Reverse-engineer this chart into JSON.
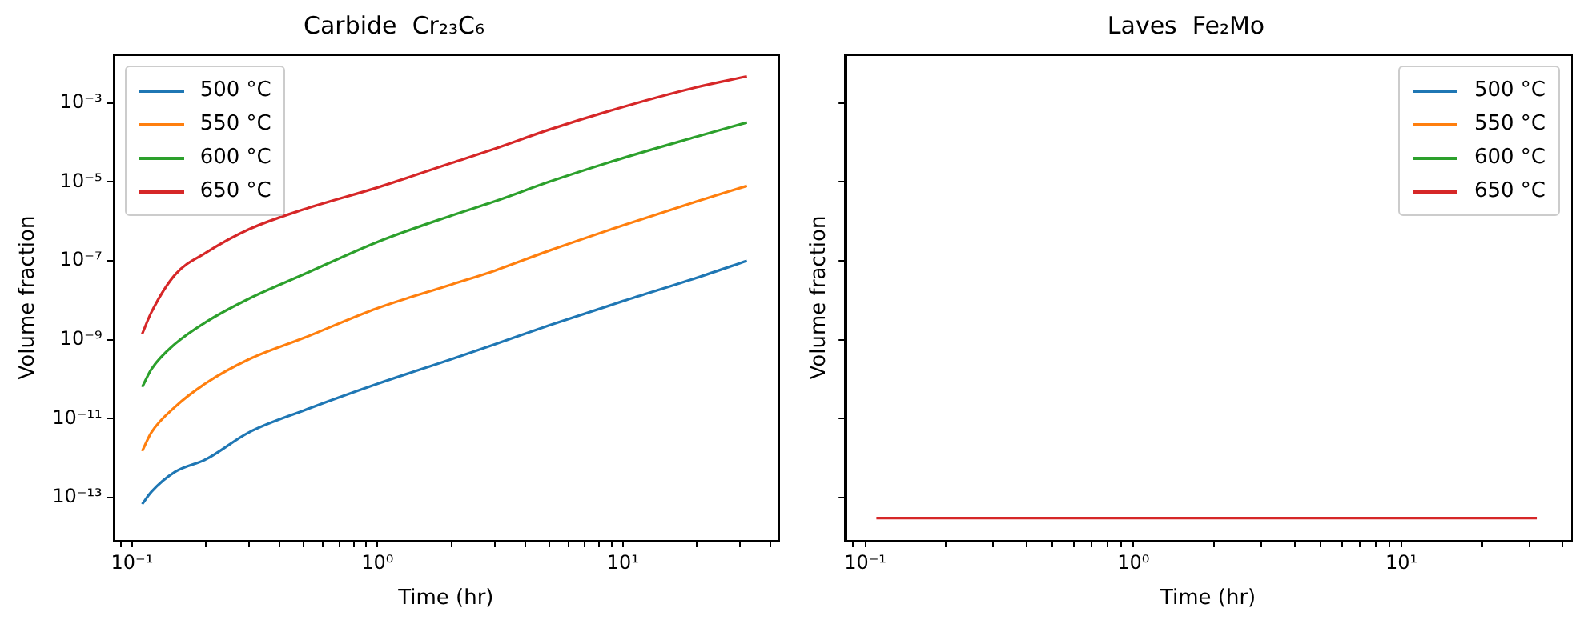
{
  "chart_data": [
    {
      "type": "line",
      "title": "Carbide  Cr₂₃C₆",
      "xlabel": "Time (hr)",
      "ylabel": "Volume fraction",
      "log": "xy",
      "legend": "top left",
      "x": [
        0.11,
        0.12,
        0.15,
        0.2,
        0.3,
        0.5,
        1,
        2,
        3,
        5,
        10,
        20,
        32
      ],
      "xlim": [
        0.084,
        43
      ],
      "ylim": [
        8e-15,
        0.017
      ],
      "xticks": [
        {
          "value": 0.1,
          "label": "10⁻¹"
        },
        {
          "value": 1,
          "label": "10⁰"
        },
        {
          "value": 10,
          "label": "10¹"
        },
        {
          "value": 0.09,
          "label": null
        },
        {
          "value": 0.2,
          "label": null
        },
        {
          "value": 0.3,
          "label": null
        },
        {
          "value": 0.4,
          "label": null
        },
        {
          "value": 0.5,
          "label": null
        },
        {
          "value": 0.6,
          "label": null
        },
        {
          "value": 0.7,
          "label": null
        },
        {
          "value": 0.8,
          "label": null
        },
        {
          "value": 0.9,
          "label": null
        },
        {
          "value": 2,
          "label": null
        },
        {
          "value": 3,
          "label": null
        },
        {
          "value": 4,
          "label": null
        },
        {
          "value": 5,
          "label": null
        },
        {
          "value": 6,
          "label": null
        },
        {
          "value": 7,
          "label": null
        },
        {
          "value": 8,
          "label": null
        },
        {
          "value": 9,
          "label": null
        },
        {
          "value": 20,
          "label": null
        },
        {
          "value": 30,
          "label": null
        },
        {
          "value": 40,
          "label": null
        }
      ],
      "yticks": [
        {
          "value": 1e-13,
          "label": "10⁻¹³"
        },
        {
          "value": 1e-11,
          "label": "10⁻¹¹"
        },
        {
          "value": 1e-09,
          "label": "10⁻⁹"
        },
        {
          "value": 1e-07,
          "label": "10⁻⁷"
        },
        {
          "value": 1e-05,
          "label": "10⁻⁵"
        },
        {
          "value": 0.001,
          "label": "10⁻³"
        }
      ],
      "series": [
        {
          "name": "500 °C",
          "color": "#1f77b4",
          "values": [
            6.8e-14,
            1.4e-13,
            4.5e-13,
            9.3e-13,
            4.5e-12,
            1.6e-11,
            7.6e-11,
            3.2e-10,
            7.6e-10,
            2.3e-09,
            9.5e-09,
            3.7e-08,
            1e-07
          ]
        },
        {
          "name": "550 °C",
          "color": "#ff7f0e",
          "values": [
            1.5e-12,
            4.5e-12,
            2e-11,
            7.9e-11,
            3.2e-10,
            1.1e-09,
            6.3e-09,
            2.5e-08,
            5.6e-08,
            1.8e-07,
            7.9e-07,
            3.2e-06,
            7.9e-06
          ]
        },
        {
          "name": "600 °C",
          "color": "#2ca02c",
          "values": [
            6.3e-11,
            1.8e-10,
            7.9e-10,
            2.8e-09,
            1.1e-08,
            4.5e-08,
            3e-07,
            1.4e-06,
            3.2e-06,
            1e-05,
            4e-05,
            0.00014,
            0.00032
          ]
        },
        {
          "name": "650 °C",
          "color": "#d62728",
          "values": [
            1.4e-09,
            5e-09,
            4.5e-08,
            1.6e-07,
            6.3e-07,
            2e-06,
            7.2e-06,
            3e-05,
            6.9e-05,
            0.00021,
            0.00079,
            0.0025,
            0.0047
          ]
        }
      ]
    },
    {
      "type": "line",
      "title": "Laves  Fe₂Mo",
      "xlabel": "Time (hr)",
      "ylabel": "Volume fraction",
      "log": "xy",
      "legend": "top right",
      "tick_labels": "x",
      "x": [
        0.11,
        32
      ],
      "xlim": [
        0.084,
        43
      ],
      "ylim": [
        8e-15,
        0.017
      ],
      "yticks": [
        {
          "value": 1e-13,
          "label": null
        },
        {
          "value": 1e-11,
          "label": null
        },
        {
          "value": 1e-09,
          "label": null
        },
        {
          "value": 1e-07,
          "label": null
        },
        {
          "value": 1e-05,
          "label": null
        },
        {
          "value": 0.001,
          "label": null
        }
      ],
      "xticks": [
        {
          "value": 0.1,
          "label": "10⁻¹"
        },
        {
          "value": 1,
          "label": "10⁰"
        },
        {
          "value": 10,
          "label": "10¹"
        },
        {
          "value": 0.09,
          "label": null
        },
        {
          "value": 0.2,
          "label": null
        },
        {
          "value": 0.3,
          "label": null
        },
        {
          "value": 0.4,
          "label": null
        },
        {
          "value": 0.5,
          "label": null
        },
        {
          "value": 0.6,
          "label": null
        },
        {
          "value": 0.7,
          "label": null
        },
        {
          "value": 0.8,
          "label": null
        },
        {
          "value": 0.9,
          "label": null
        },
        {
          "value": 2,
          "label": null
        },
        {
          "value": 3,
          "label": null
        },
        {
          "value": 4,
          "label": null
        },
        {
          "value": 5,
          "label": null
        },
        {
          "value": 6,
          "label": null
        },
        {
          "value": 7,
          "label": null
        },
        {
          "value": 8,
          "label": null
        },
        {
          "value": 9,
          "label": null
        },
        {
          "value": 20,
          "label": null
        },
        {
          "value": 30,
          "label": null
        },
        {
          "value": 40,
          "label": null
        }
      ],
      "series": [
        {
          "name": "500 °C",
          "color": "#1f77b4",
          "values": [
            null,
            null
          ]
        },
        {
          "name": "550 °C",
          "color": "#ff7f0e",
          "values": [
            null,
            null
          ]
        },
        {
          "name": "600 °C",
          "color": "#2ca02c",
          "values": [
            null,
            null
          ]
        },
        {
          "name": "650 °C",
          "color": "#d62728",
          "values": [
            3e-14,
            3e-14
          ]
        }
      ]
    }
  ]
}
